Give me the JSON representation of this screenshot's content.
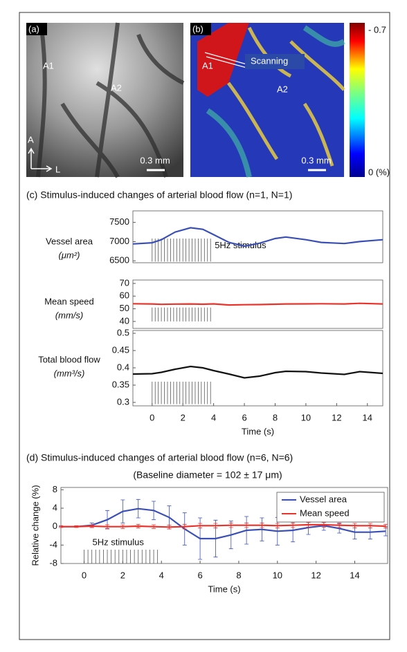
{
  "panel_a": {
    "label": "(a)",
    "site_1": "A1",
    "site_2": "A2",
    "axis_anterior": "A",
    "axis_lateral": "L",
    "scale": "0.3 mm"
  },
  "panel_b": {
    "label": "(b)",
    "site_1": "A1",
    "site_2": "A2",
    "scan_label": "Scanning",
    "scale": "0.3 mm",
    "colorbar_top": "- 0.7",
    "colorbar_bottom": "0 (%)"
  },
  "chart_data": [
    {
      "type": "line",
      "title": "(c)  Stimulus-induced changes of arterial blood flow (n=1, N=1)",
      "ylabel": "Vessel area",
      "yunit": "(μm²)",
      "color": "#3a4fb5",
      "x": [
        -1.25,
        0,
        0.6,
        1.5,
        2.5,
        3.3,
        4,
        5,
        6,
        7,
        8,
        8.7,
        10,
        11,
        12.5,
        13.5,
        15
      ],
      "values": [
        6940,
        6970,
        7050,
        7250,
        7360,
        7320,
        7180,
        6980,
        6880,
        6960,
        7080,
        7120,
        7050,
        6980,
        6950,
        7000,
        7050
      ],
      "xlim": [
        -1.25,
        15
      ],
      "ylim": [
        6450,
        7800
      ],
      "yticks": [
        6500,
        7000,
        7500
      ],
      "stimulus": {
        "label": "5Hz stimulus",
        "start": 0,
        "end": 3.8,
        "low": 6480,
        "high": 7080
      }
    },
    {
      "type": "line",
      "ylabel": "Mean speed",
      "yunit": "(mm/s)",
      "color": "#e8322a",
      "x": [
        -1.25,
        0,
        0.6,
        1.5,
        2.5,
        3.3,
        4,
        5,
        6,
        7,
        8,
        8.7,
        10,
        11,
        12.5,
        13.5,
        15
      ],
      "values": [
        54,
        53.8,
        53.5,
        53.7,
        53.8,
        53.6,
        53.9,
        53,
        53.2,
        53.3,
        53.6,
        53.8,
        53.9,
        54,
        53.8,
        54.3,
        53.8
      ],
      "xlim": [
        -1.25,
        15
      ],
      "ylim": [
        34.5,
        72.7
      ],
      "yticks": [
        40,
        50,
        60,
        70
      ],
      "stimulus": {
        "start": 0,
        "end": 3.8,
        "low": 40,
        "high": 51
      }
    },
    {
      "type": "line",
      "ylabel": "Total blood flow",
      "yunit": "(mm³/s)",
      "color": "#111111",
      "x": [
        -1.25,
        0,
        0.6,
        1.5,
        2.5,
        3.3,
        4,
        5,
        6,
        7,
        8,
        8.7,
        10,
        11,
        12.5,
        13.5,
        15
      ],
      "values": [
        0.382,
        0.383,
        0.387,
        0.396,
        0.404,
        0.4,
        0.392,
        0.382,
        0.371,
        0.376,
        0.386,
        0.39,
        0.389,
        0.385,
        0.381,
        0.389,
        0.384
      ],
      "xlim": [
        -1.25,
        15
      ],
      "ylim": [
        0.29,
        0.508
      ],
      "yticks": [
        0.3,
        0.35,
        0.4,
        0.45,
        0.5
      ],
      "xticks": [
        0,
        2,
        4,
        6,
        8,
        10,
        12,
        14
      ],
      "xlabel": "Time (s)",
      "stimulus": {
        "start": 0,
        "end": 3.8,
        "low": 0.295,
        "high": 0.36
      }
    },
    {
      "type": "errorbar",
      "title": "(d)  Stimulus-induced changes of arterial blood flow (n=6, N=6)",
      "subtitle": "(Baseline diameter = 102 ± 17 μm)",
      "ylabel": "Relative change (%)",
      "xlabel": "Time (s)",
      "x": [
        -1.2,
        -0.4,
        0.4,
        1.2,
        2.0,
        2.8,
        3.6,
        4.4,
        5.2,
        6.0,
        6.8,
        7.6,
        8.4,
        9.2,
        10.0,
        10.8,
        11.6,
        12.4,
        13.2,
        14.0,
        14.8,
        15.6
      ],
      "series": [
        {
          "name": "Vessel area",
          "color": "#3a4fb5",
          "values": [
            0,
            0,
            0.3,
            1.5,
            3.3,
            3.9,
            3.5,
            2,
            -0.5,
            -2.6,
            -2.6,
            -1.8,
            -0.8,
            -0.6,
            -1,
            -0.8,
            -0.2,
            0.2,
            -0.4,
            -1.2,
            -1.2,
            -1
          ],
          "errors": [
            0,
            0,
            0.5,
            2,
            2.5,
            2,
            2,
            2.5,
            3.5,
            4.5,
            4,
            3,
            3,
            2.5,
            3,
            2.5,
            1.5,
            1,
            1,
            1.5,
            1.5,
            1
          ]
        },
        {
          "name": "Mean speed",
          "color": "#e8322a",
          "values": [
            0,
            0,
            0.1,
            0,
            0,
            0.1,
            0,
            -0.1,
            0,
            0.2,
            0.2,
            0.3,
            0.3,
            0.3,
            0.2,
            0.3,
            0.4,
            0.4,
            0.3,
            0.2,
            0.2,
            0.1
          ],
          "errors": [
            0.2,
            0.2,
            0.3,
            0.4,
            0.4,
            0.4,
            0.4,
            0.4,
            0.5,
            0.5,
            0.5,
            0.5,
            0.5,
            0.5,
            0.5,
            0.5,
            0.5,
            0.5,
            0.5,
            0.5,
            0.5,
            0.4
          ]
        }
      ],
      "xlim": [
        -1.2,
        15.7
      ],
      "ylim": [
        -8,
        8.5
      ],
      "yticks": [
        -8,
        -4,
        0,
        4,
        8
      ],
      "xticks": [
        0,
        2,
        4,
        6,
        8,
        10,
        12,
        14
      ],
      "legend": "upper right",
      "stimulus": {
        "label": "5Hz stimulus",
        "start": 0,
        "end": 3.8,
        "low": -8,
        "high": -5
      }
    }
  ]
}
